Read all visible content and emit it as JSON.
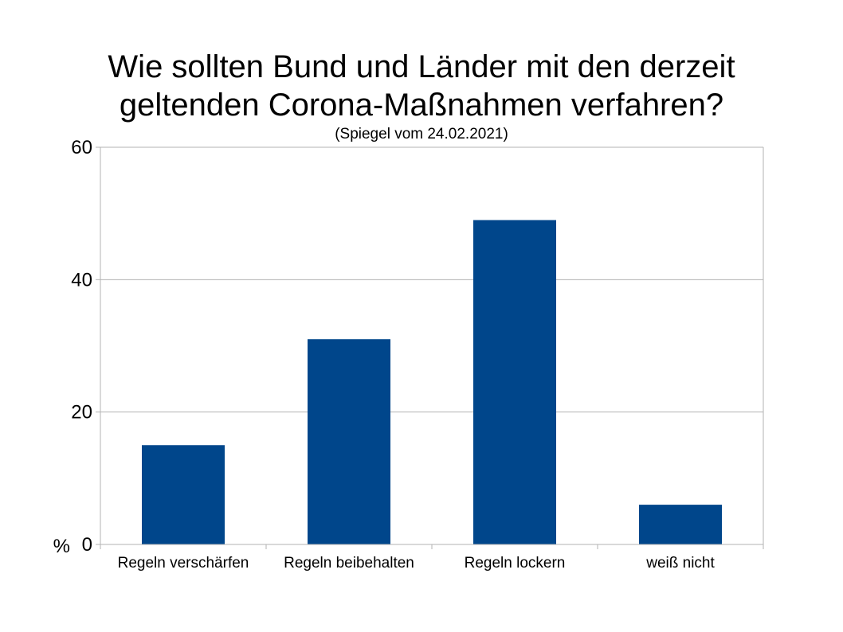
{
  "chart_data": {
    "type": "bar",
    "title_lines": [
      "Wie sollten Bund und Länder mit den derzeit",
      "geltenden Corona-Maßnahmen verfahren?"
    ],
    "subtitle": "(Spiegel vom 24.02.2021)",
    "categories": [
      "Regeln verschärfen",
      "Regeln beibehalten",
      "Regeln lockern",
      "weiß nicht"
    ],
    "values": [
      15,
      31,
      49,
      6
    ],
    "ylabel": "%",
    "ylim": [
      0,
      60
    ],
    "yticks": [
      0,
      20,
      40,
      60
    ],
    "grid": true,
    "legend": "none",
    "bar_color": "#00468b",
    "grid_color": "#b3b3b3"
  }
}
